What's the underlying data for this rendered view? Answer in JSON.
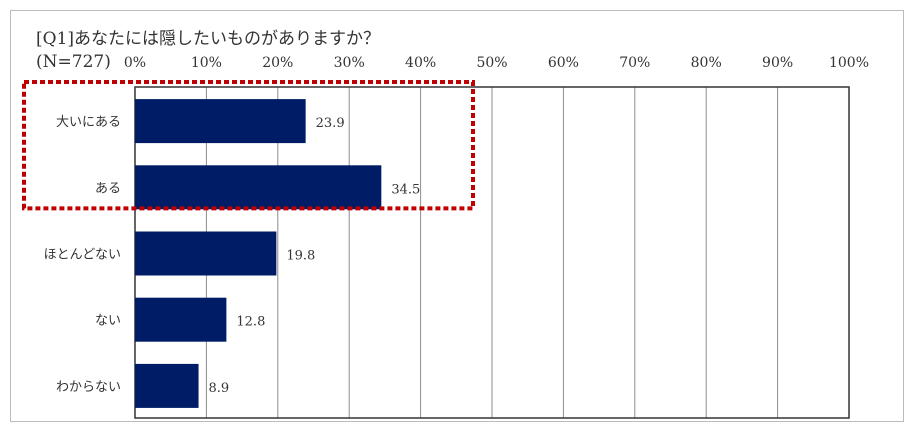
{
  "chart_data": {
    "type": "bar",
    "orientation": "horizontal",
    "title": "[Q1]あなたには隠したいものがありますか？",
    "subtitle": "(N=727)",
    "categories": [
      "大いにある",
      "ある",
      "ほとんどない",
      "ない",
      "わからない"
    ],
    "values": [
      23.9,
      34.5,
      19.8,
      12.8,
      8.9
    ],
    "value_labels": [
      "23.9",
      "34.5",
      "19.8",
      "12.8",
      "8.9"
    ],
    "xlim": [
      0,
      100
    ],
    "x_ticks": [
      "0%",
      "10%",
      "20%",
      "30%",
      "40%",
      "50%",
      "60%",
      "70%",
      "80%",
      "90%",
      "100%"
    ],
    "grid": true,
    "bar_color": "#001c66",
    "highlight": {
      "categories": [
        "大いにある",
        "ある"
      ],
      "style": "dotted-box",
      "color": "#c00000"
    }
  }
}
